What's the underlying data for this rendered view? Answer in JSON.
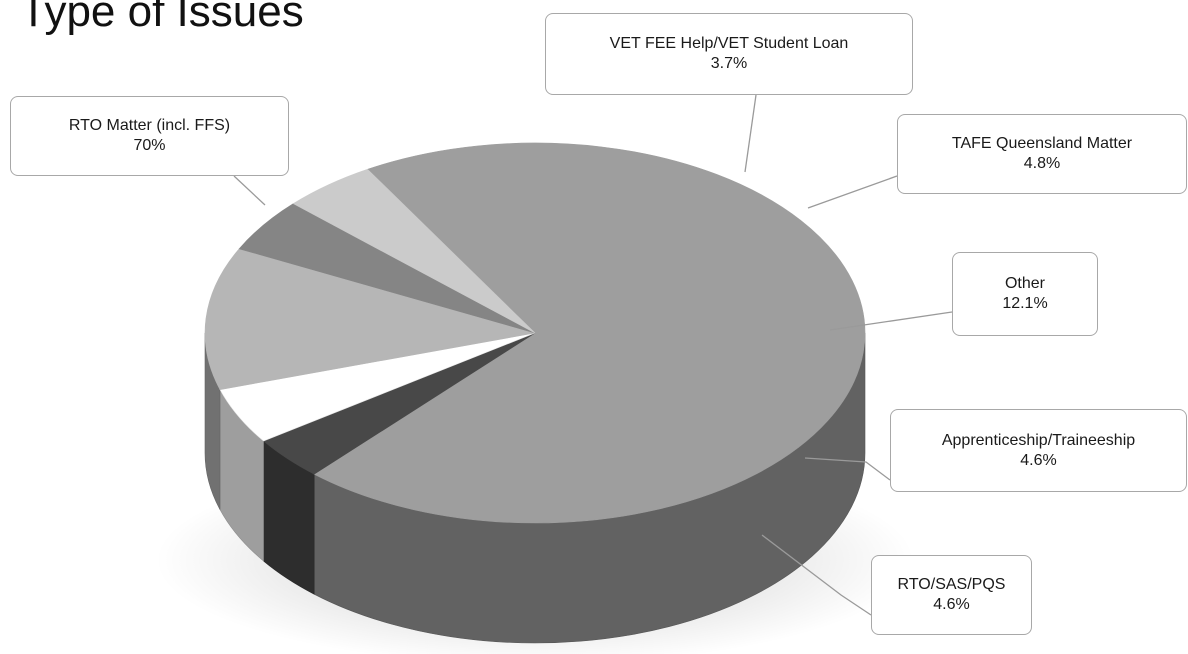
{
  "chart_data": {
    "type": "pie",
    "title": "Type of Issues",
    "slices": [
      {
        "label": "RTO Matter (incl. FFS)",
        "value": 70,
        "display": "70%",
        "color": "#9e9e9e"
      },
      {
        "label": "VET FEE Help/VET Student Loan",
        "value": 3.7,
        "display": "3.7%",
        "color": "#484848"
      },
      {
        "label": "TAFE Queensland Matter",
        "value": 4.8,
        "display": "4.8%",
        "color": "#ffffff"
      },
      {
        "label": "Other",
        "value": 12.1,
        "display": "12.1%",
        "color": "#b6b6b6"
      },
      {
        "label": "Apprenticeship/Traineeship",
        "value": 4.6,
        "display": "4.6%",
        "color": "#858585"
      },
      {
        "label": "RTO/SAS/PQS",
        "value": 4.6,
        "display": "4.6%",
        "color": "#cbcbcb"
      }
    ]
  }
}
